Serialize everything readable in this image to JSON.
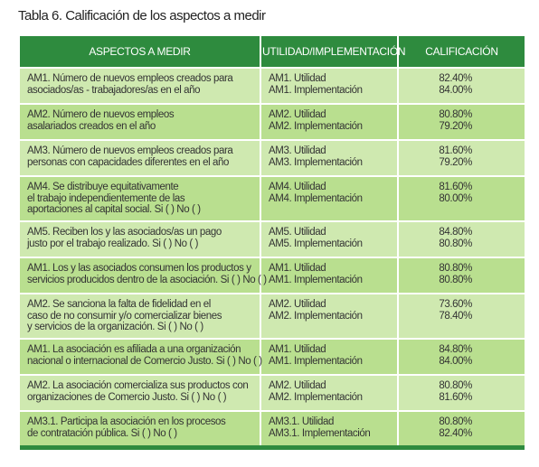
{
  "title": "Tabla 6. Calificación de los aspectos a medir",
  "table": {
    "headers": [
      "ASPECTOS A MEDIR",
      "UTILIDAD/IMPLEMENTACIÓN",
      "CALIFICACIÓN"
    ],
    "rows": [
      {
        "aspect": [
          "AM1. Número de nuevos empleos creados para",
          "asociados/as - trabajadores/as en el año"
        ],
        "items": [
          "AM1. Utilidad",
          "AM1. Implementación"
        ],
        "scores": [
          "82.40%",
          "84.00%"
        ]
      },
      {
        "aspect": [
          "AM2. Número de nuevos empleos",
          "asalariados creados en el año"
        ],
        "items": [
          "AM2. Utilidad",
          "AM2. Implementación"
        ],
        "scores": [
          "80.80%",
          "79.20%"
        ]
      },
      {
        "aspect": [
          "AM3. Número de nuevos empleos creados para",
          "personas con capacidades diferentes en el año"
        ],
        "items": [
          "AM3. Utilidad",
          "AM3. Implementación"
        ],
        "scores": [
          "81.60%",
          "79.20%"
        ]
      },
      {
        "aspect": [
          "AM4. Se distribuye equitativamente",
          "el trabajo independientemente de las",
          "aportaciones al capital social. Si ( ) No ( )"
        ],
        "items": [
          "AM4. Utilidad",
          "AM4. Implementación"
        ],
        "scores": [
          "81.60%",
          "80.00%"
        ]
      },
      {
        "aspect": [
          "AM5. Reciben los y las asociados/as un pago",
          "justo por el trabajo realizado. Si ( ) No ( )"
        ],
        "items": [
          "AM5. Utilidad",
          "AM5. Implementación"
        ],
        "scores": [
          "84.80%",
          "80.80%"
        ]
      },
      {
        "aspect": [
          "AM1. Los y las asociados consumen los productos y",
          "servicios producidos dentro de la asociación. Si ( ) No ( )"
        ],
        "items": [
          "AM1. Utilidad",
          "AM1. Implementación"
        ],
        "scores": [
          "80.80%",
          "80.80%"
        ]
      },
      {
        "aspect": [
          "AM2. Se sanciona la falta de fidelidad en el",
          "caso de no consumir y/o comercializar bienes",
          "y servicios de la organización. Si ( ) No ( )"
        ],
        "items": [
          "AM2. Utilidad",
          "AM2. Implementación"
        ],
        "scores": [
          "73.60%",
          "78.40%"
        ]
      },
      {
        "aspect": [
          "AM1. La asociación es afiliada a una organización",
          "nacional o internacional de Comercio Justo. Si ( ) No ( )"
        ],
        "items": [
          "AM1. Utilidad",
          "AM1. Implementación"
        ],
        "scores": [
          "84.80%",
          "84.00%"
        ]
      },
      {
        "aspect": [
          "AM2. La asociación comercializa sus productos con",
          "organizaciones de Comercio Justo. Si ( ) No ( )"
        ],
        "items": [
          "AM2. Utilidad",
          "AM2. Implementación"
        ],
        "scores": [
          "80.80%",
          "81.60%"
        ]
      },
      {
        "aspect": [
          "AM3.1. Participa la asociación en los procesos",
          "de contratación pública. Si ( ) No ( )"
        ],
        "items": [
          "AM3.1. Utilidad",
          "AM3.1. Implementación"
        ],
        "scores": [
          "80.80%",
          "82.40%"
        ]
      }
    ]
  }
}
